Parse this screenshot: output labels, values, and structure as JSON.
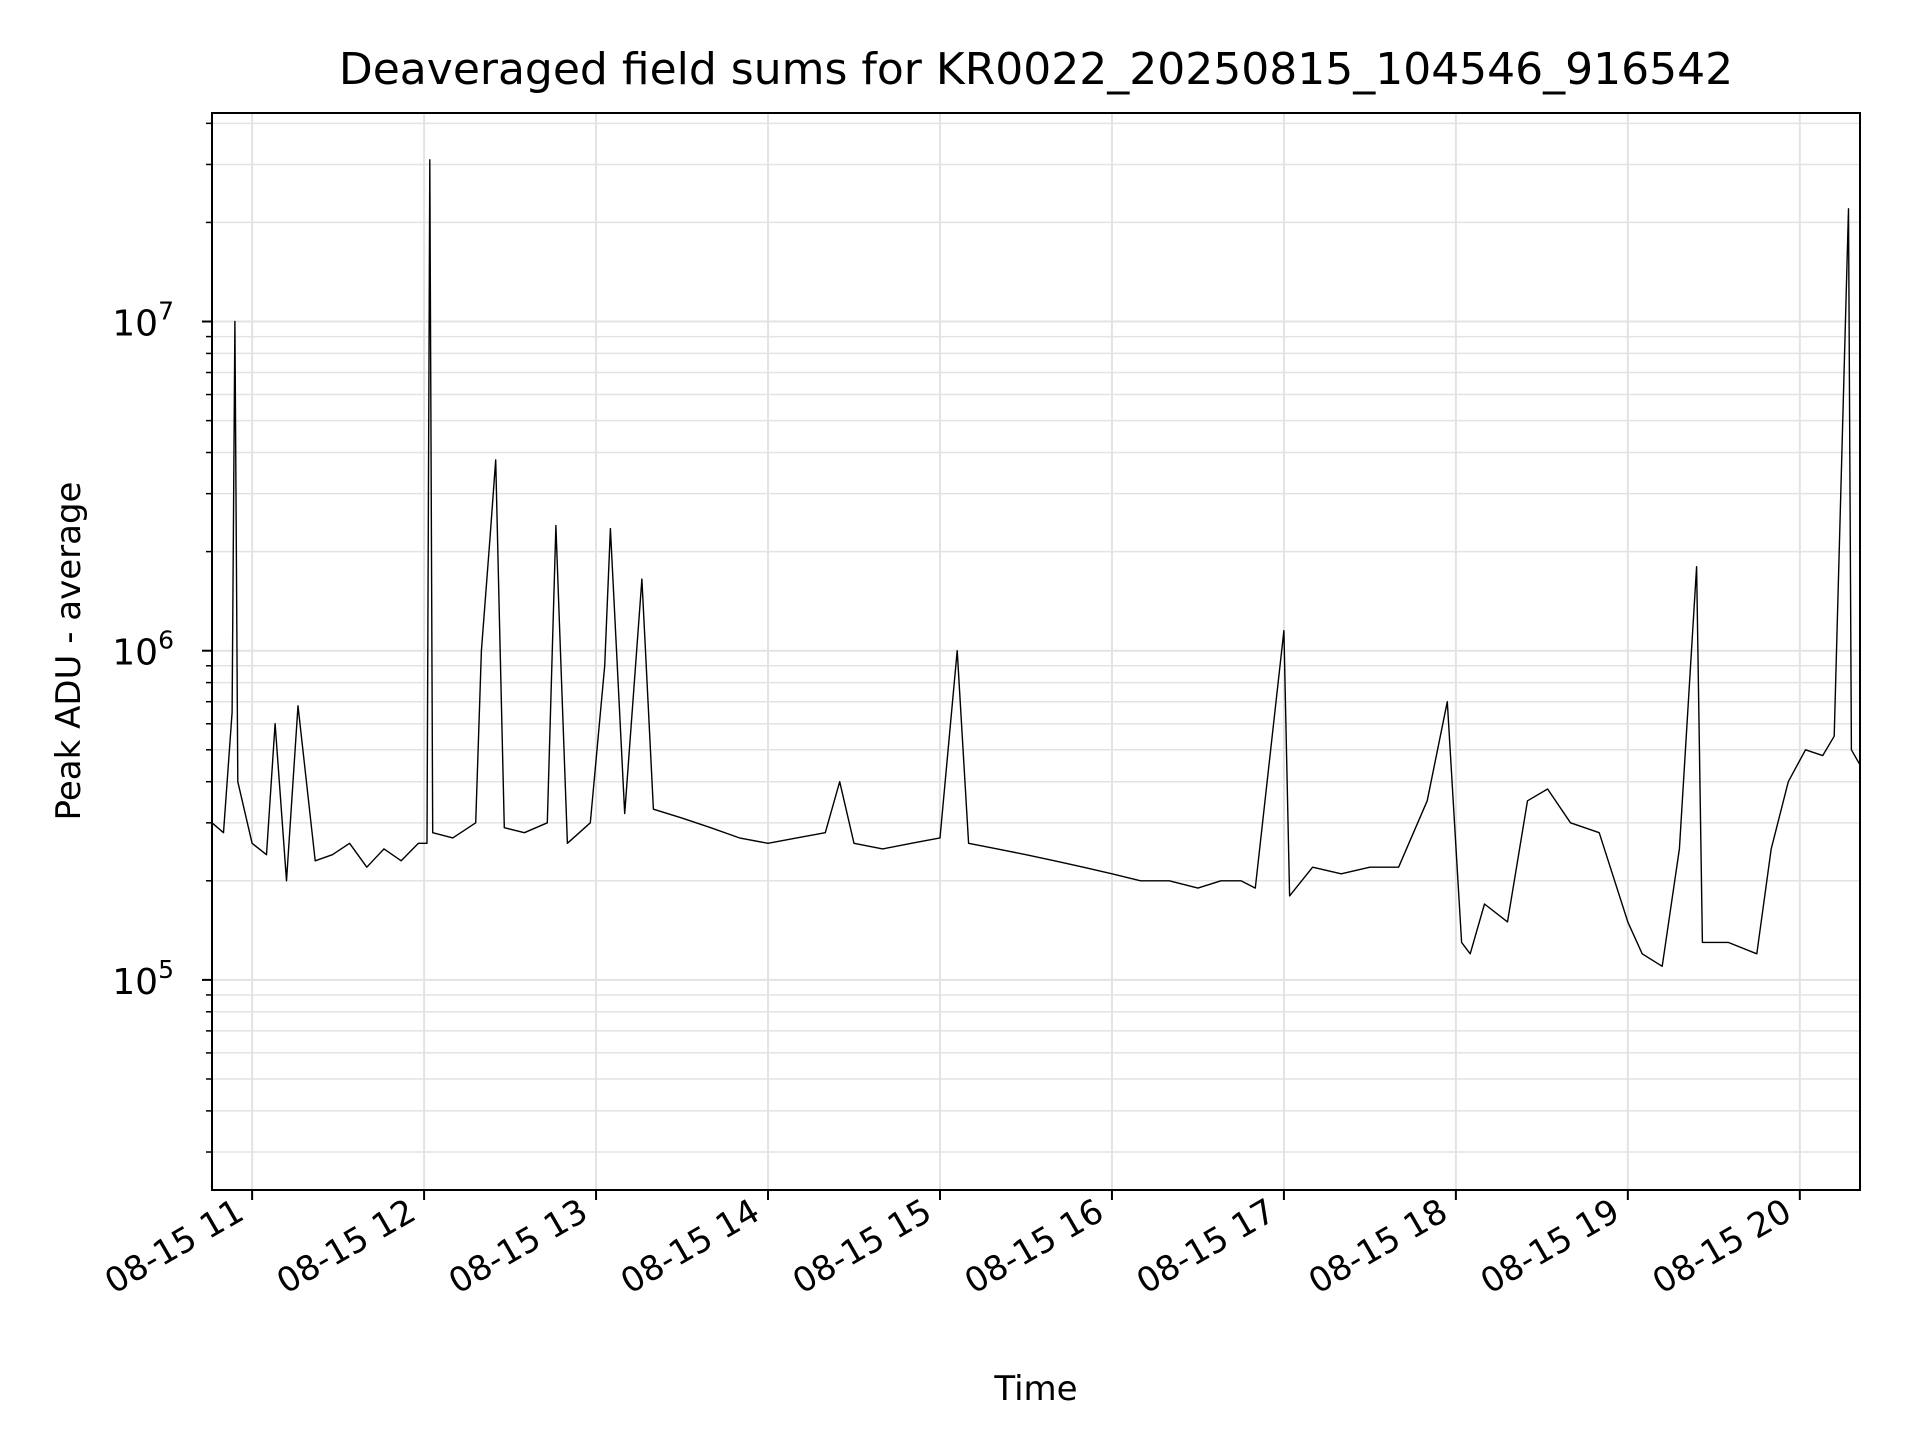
{
  "chart_data": {
    "type": "line",
    "title": "Deaveraged field sums for KR0022_20250815_104546_916542",
    "xlabel": "Time",
    "ylabel": "Peak ADU - average",
    "x_range": [
      "2025-08-15T10:46",
      "2025-08-15T20:21"
    ],
    "x_tick_labels": [
      "08-15 11",
      "08-15 12",
      "08-15 13",
      "08-15 14",
      "08-15 15",
      "08-15 16",
      "08-15 17",
      "08-15 18",
      "08-15 19",
      "08-15 20"
    ],
    "x_tick_times": [
      "2025-08-15T11:00",
      "2025-08-15T12:00",
      "2025-08-15T13:00",
      "2025-08-15T14:00",
      "2025-08-15T15:00",
      "2025-08-15T16:00",
      "2025-08-15T17:00",
      "2025-08-15T18:00",
      "2025-08-15T19:00",
      "2025-08-15T20:00"
    ],
    "yscale": "log",
    "ylim": [
      23000,
      43000000
    ],
    "y_ticks": [
      100000,
      1000000,
      10000000
    ],
    "y_tick_labels": [
      {
        "base": "10",
        "exp": "5"
      },
      {
        "base": "10",
        "exp": "6"
      },
      {
        "base": "10",
        "exp": "7"
      }
    ],
    "grid": true,
    "line_color": "#000000",
    "series": [
      {
        "points": [
          [
            "2025-08-15T10:46",
            300000
          ],
          [
            "2025-08-15T10:50",
            280000
          ],
          [
            "2025-08-15T10:53",
            650000
          ],
          [
            "2025-08-15T10:54",
            10000000
          ],
          [
            "2025-08-15T10:55",
            400000
          ],
          [
            "2025-08-15T11:00",
            260000
          ],
          [
            "2025-08-15T11:05",
            240000
          ],
          [
            "2025-08-15T11:08",
            600000
          ],
          [
            "2025-08-15T11:12",
            200000
          ],
          [
            "2025-08-15T11:16",
            680000
          ],
          [
            "2025-08-15T11:22",
            230000
          ],
          [
            "2025-08-15T11:28",
            240000
          ],
          [
            "2025-08-15T11:34",
            260000
          ],
          [
            "2025-08-15T11:40",
            220000
          ],
          [
            "2025-08-15T11:46",
            250000
          ],
          [
            "2025-08-15T11:52",
            230000
          ],
          [
            "2025-08-15T11:58",
            260000
          ],
          [
            "2025-08-15T12:01",
            260000
          ],
          [
            "2025-08-15T12:02",
            31000000
          ],
          [
            "2025-08-15T12:03",
            280000
          ],
          [
            "2025-08-15T12:10",
            270000
          ],
          [
            "2025-08-15T12:18",
            300000
          ],
          [
            "2025-08-15T12:20",
            1000000
          ],
          [
            "2025-08-15T12:23",
            2200000
          ],
          [
            "2025-08-15T12:25",
            3800000
          ],
          [
            "2025-08-15T12:28",
            290000
          ],
          [
            "2025-08-15T12:35",
            280000
          ],
          [
            "2025-08-15T12:43",
            300000
          ],
          [
            "2025-08-15T12:46",
            2400000
          ],
          [
            "2025-08-15T12:50",
            260000
          ],
          [
            "2025-08-15T12:58",
            300000
          ],
          [
            "2025-08-15T13:03",
            900000
          ],
          [
            "2025-08-15T13:05",
            2350000
          ],
          [
            "2025-08-15T13:10",
            320000
          ],
          [
            "2025-08-15T13:16",
            1650000
          ],
          [
            "2025-08-15T13:20",
            330000
          ],
          [
            "2025-08-15T13:30",
            310000
          ],
          [
            "2025-08-15T13:40",
            290000
          ],
          [
            "2025-08-15T13:50",
            270000
          ],
          [
            "2025-08-15T14:00",
            260000
          ],
          [
            "2025-08-15T14:10",
            270000
          ],
          [
            "2025-08-15T14:20",
            280000
          ],
          [
            "2025-08-15T14:25",
            400000
          ],
          [
            "2025-08-15T14:30",
            260000
          ],
          [
            "2025-08-15T14:40",
            250000
          ],
          [
            "2025-08-15T14:50",
            260000
          ],
          [
            "2025-08-15T15:00",
            270000
          ],
          [
            "2025-08-15T15:06",
            1000000
          ],
          [
            "2025-08-15T15:10",
            260000
          ],
          [
            "2025-08-15T15:20",
            250000
          ],
          [
            "2025-08-15T15:30",
            240000
          ],
          [
            "2025-08-15T15:40",
            230000
          ],
          [
            "2025-08-15T15:50",
            220000
          ],
          [
            "2025-08-15T16:00",
            210000
          ],
          [
            "2025-08-15T16:10",
            200000
          ],
          [
            "2025-08-15T16:20",
            200000
          ],
          [
            "2025-08-15T16:30",
            190000
          ],
          [
            "2025-08-15T16:38",
            200000
          ],
          [
            "2025-08-15T16:45",
            200000
          ],
          [
            "2025-08-15T16:50",
            190000
          ],
          [
            "2025-08-15T17:00",
            1150000
          ],
          [
            "2025-08-15T17:02",
            180000
          ],
          [
            "2025-08-15T17:10",
            220000
          ],
          [
            "2025-08-15T17:20",
            210000
          ],
          [
            "2025-08-15T17:30",
            220000
          ],
          [
            "2025-08-15T17:40",
            220000
          ],
          [
            "2025-08-15T17:50",
            350000
          ],
          [
            "2025-08-15T17:57",
            700000
          ],
          [
            "2025-08-15T18:02",
            130000
          ],
          [
            "2025-08-15T18:05",
            120000
          ],
          [
            "2025-08-15T18:10",
            170000
          ],
          [
            "2025-08-15T18:18",
            150000
          ],
          [
            "2025-08-15T18:25",
            350000
          ],
          [
            "2025-08-15T18:32",
            380000
          ],
          [
            "2025-08-15T18:40",
            300000
          ],
          [
            "2025-08-15T18:50",
            280000
          ],
          [
            "2025-08-15T19:00",
            150000
          ],
          [
            "2025-08-15T19:05",
            120000
          ],
          [
            "2025-08-15T19:12",
            110000
          ],
          [
            "2025-08-15T19:18",
            250000
          ],
          [
            "2025-08-15T19:24",
            1800000
          ],
          [
            "2025-08-15T19:26",
            130000
          ],
          [
            "2025-08-15T19:35",
            130000
          ],
          [
            "2025-08-15T19:45",
            120000
          ],
          [
            "2025-08-15T19:50",
            250000
          ],
          [
            "2025-08-15T19:56",
            400000
          ],
          [
            "2025-08-15T20:02",
            500000
          ],
          [
            "2025-08-15T20:08",
            480000
          ],
          [
            "2025-08-15T20:12",
            550000
          ],
          [
            "2025-08-15T20:17",
            22000000
          ],
          [
            "2025-08-15T20:18",
            500000
          ],
          [
            "2025-08-15T20:21",
            450000
          ]
        ]
      }
    ]
  }
}
